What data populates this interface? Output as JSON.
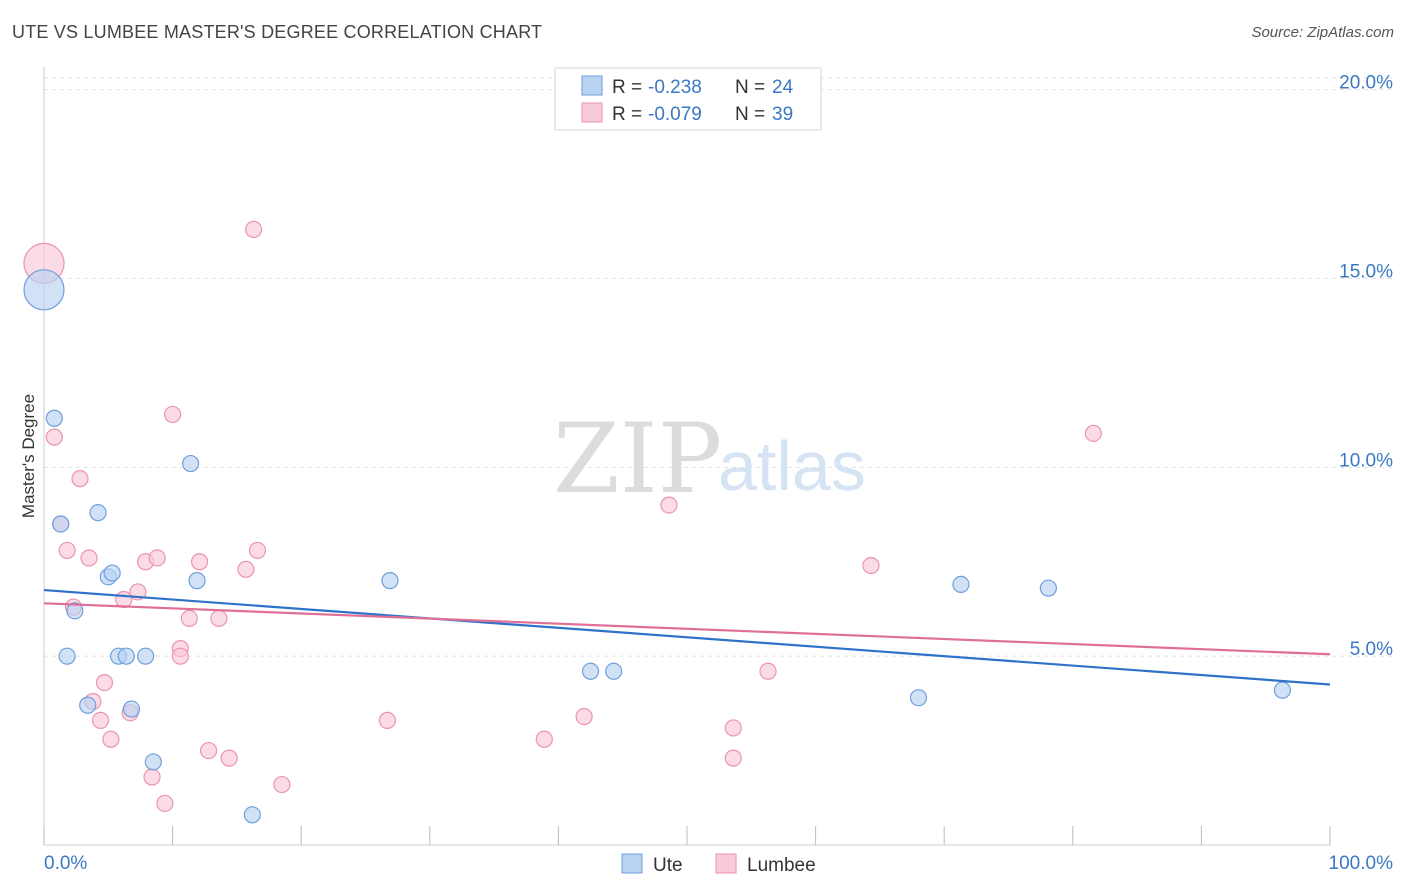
{
  "header": {
    "title": "UTE VS LUMBEE MASTER'S DEGREE CORRELATION CHART",
    "source": "Source: ZipAtlas.com"
  },
  "watermark": {
    "zip": "ZIP",
    "atlas": "atlas"
  },
  "legend_box": {
    "rows": [
      {
        "r_label": "R =",
        "r_value": "-0.238",
        "n_label": "N =",
        "n_value": "24"
      },
      {
        "r_label": "R =",
        "r_value": "-0.079",
        "n_label": "N =",
        "n_value": "39"
      }
    ]
  },
  "colors": {
    "ute_fill": "#b9d3f2",
    "ute_stroke": "#6f9fdc",
    "ute_line": "#2f72c9",
    "lumbee_fill": "#f9cad8",
    "lumbee_stroke": "#ec93ad",
    "lumbee_line": "#e06f97",
    "tick_text": "#3b78c4",
    "grid": "#e3e3e3"
  },
  "chart_data": {
    "type": "scatter",
    "title": "UTE VS LUMBEE MASTER'S DEGREE CORRELATION CHART",
    "xlabel": "",
    "ylabel": "Master's Degree",
    "xlim": [
      0,
      100
    ],
    "ylim": [
      0,
      20.6
    ],
    "x_tick_labels": [
      {
        "value": 0,
        "label": "0.0%"
      },
      {
        "value": 100,
        "label": "100.0%"
      }
    ],
    "y_tick_labels": [
      {
        "value": 5,
        "label": "5.0%"
      },
      {
        "value": 10,
        "label": "10.0%"
      },
      {
        "value": 15,
        "label": "15.0%"
      },
      {
        "value": 20,
        "label": "20.0%"
      }
    ],
    "x_minor_ticks": [
      0,
      10,
      20,
      30,
      40,
      50,
      60,
      70,
      80,
      90,
      100
    ],
    "grid": true,
    "legend_position": "bottom-center",
    "series": [
      {
        "name": "Ute",
        "r": -0.238,
        "n": 24,
        "trend": {
          "x": [
            0,
            100
          ],
          "y": [
            6.75,
            4.25
          ]
        },
        "points": [
          {
            "x": 0,
            "y": 14.7,
            "big": true
          },
          {
            "x": 0.8,
            "y": 11.3
          },
          {
            "x": 1.3,
            "y": 8.5
          },
          {
            "x": 1.8,
            "y": 5.0
          },
          {
            "x": 2.4,
            "y": 6.2
          },
          {
            "x": 3.4,
            "y": 3.7
          },
          {
            "x": 4.2,
            "y": 8.8
          },
          {
            "x": 5.0,
            "y": 7.1
          },
          {
            "x": 5.3,
            "y": 7.2
          },
          {
            "x": 5.8,
            "y": 5.0
          },
          {
            "x": 6.4,
            "y": 5.0
          },
          {
            "x": 6.8,
            "y": 3.6
          },
          {
            "x": 7.9,
            "y": 5.0
          },
          {
            "x": 8.5,
            "y": 2.2
          },
          {
            "x": 11.4,
            "y": 10.1
          },
          {
            "x": 11.9,
            "y": 7.0
          },
          {
            "x": 16.2,
            "y": 0.8
          },
          {
            "x": 26.9,
            "y": 7.0
          },
          {
            "x": 42.5,
            "y": 4.6
          },
          {
            "x": 44.3,
            "y": 4.6
          },
          {
            "x": 68.0,
            "y": 3.9
          },
          {
            "x": 71.3,
            "y": 6.9
          },
          {
            "x": 78.1,
            "y": 6.8
          },
          {
            "x": 96.3,
            "y": 4.1
          }
        ]
      },
      {
        "name": "Lumbee",
        "r": -0.079,
        "n": 39,
        "trend": {
          "x": [
            0,
            100
          ],
          "y": [
            6.4,
            5.05
          ]
        },
        "points": [
          {
            "x": 0,
            "y": 15.4,
            "big": true
          },
          {
            "x": 0.8,
            "y": 10.8
          },
          {
            "x": 1.3,
            "y": 8.5
          },
          {
            "x": 1.8,
            "y": 7.8
          },
          {
            "x": 2.3,
            "y": 6.3
          },
          {
            "x": 2.8,
            "y": 9.7
          },
          {
            "x": 3.5,
            "y": 7.6
          },
          {
            "x": 3.8,
            "y": 3.8
          },
          {
            "x": 4.4,
            "y": 3.3
          },
          {
            "x": 4.7,
            "y": 4.3
          },
          {
            "x": 5.2,
            "y": 2.8
          },
          {
            "x": 6.2,
            "y": 6.5
          },
          {
            "x": 6.7,
            "y": 3.5
          },
          {
            "x": 7.3,
            "y": 6.7
          },
          {
            "x": 7.9,
            "y": 7.5
          },
          {
            "x": 8.4,
            "y": 1.8
          },
          {
            "x": 8.8,
            "y": 7.6
          },
          {
            "x": 9.4,
            "y": 1.1
          },
          {
            "x": 10.0,
            "y": 11.4
          },
          {
            "x": 10.6,
            "y": 5.2
          },
          {
            "x": 10.6,
            "y": 5.0
          },
          {
            "x": 11.3,
            "y": 6.0
          },
          {
            "x": 12.1,
            "y": 7.5
          },
          {
            "x": 12.8,
            "y": 2.5
          },
          {
            "x": 13.6,
            "y": 6.0
          },
          {
            "x": 14.4,
            "y": 2.3
          },
          {
            "x": 15.7,
            "y": 7.3
          },
          {
            "x": 16.3,
            "y": 16.3
          },
          {
            "x": 16.6,
            "y": 7.8
          },
          {
            "x": 18.5,
            "y": 1.6
          },
          {
            "x": 26.7,
            "y": 3.3
          },
          {
            "x": 38.9,
            "y": 2.8
          },
          {
            "x": 42.0,
            "y": 3.4
          },
          {
            "x": 48.6,
            "y": 9.0
          },
          {
            "x": 53.6,
            "y": 3.1
          },
          {
            "x": 53.6,
            "y": 2.3
          },
          {
            "x": 56.3,
            "y": 4.6
          },
          {
            "x": 64.3,
            "y": 7.4
          },
          {
            "x": 81.6,
            "y": 10.9
          }
        ]
      }
    ]
  }
}
